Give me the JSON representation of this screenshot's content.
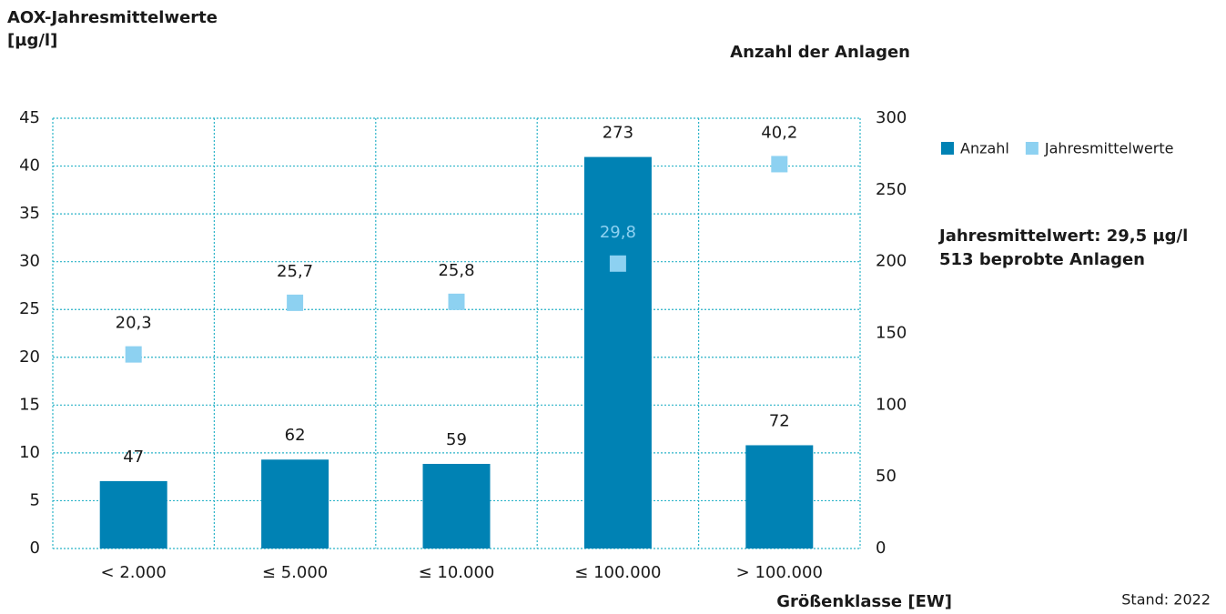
{
  "chart_data": {
    "type": "bar",
    "y_label": [
      "AOX-Jahresmittelwerte",
      "[µg/l]"
    ],
    "y2_label": "Anzahl der Anlagen",
    "x_label": "Größenklasse [EW]",
    "annotations": [
      "Jahresmittelwert: 29,5 µg/l",
      "513 beprobte Anlagen"
    ],
    "note": "Stand: 2022",
    "categories": [
      "< 2.000",
      "≤ 5.000",
      "≤ 10.000",
      "≤ 100.000",
      "> 100.000"
    ],
    "series": [
      {
        "name": "Anzahl",
        "type": "bar",
        "axis": "y2",
        "color": "#0082b4",
        "values": [
          47,
          62,
          59,
          273,
          72
        ]
      },
      {
        "name": "Jahresmittelwerte",
        "type": "scatter",
        "color": "#8dd1f1",
        "values": [
          20.3,
          25.7,
          25.8,
          29.8,
          40.2
        ],
        "value_labels": [
          "20,3",
          "25,7",
          "25,8",
          "29,8",
          "40,2"
        ]
      }
    ],
    "ylim": [
      0,
      45
    ],
    "yticks": [
      0,
      5,
      10,
      15,
      20,
      25,
      30,
      35,
      40,
      45
    ],
    "y2lim": [
      0,
      300
    ],
    "y2ticks": [
      0,
      50,
      100,
      150,
      200,
      250,
      300
    ],
    "grid": true,
    "grid_color": "#2bb3c8",
    "legend": "right"
  }
}
